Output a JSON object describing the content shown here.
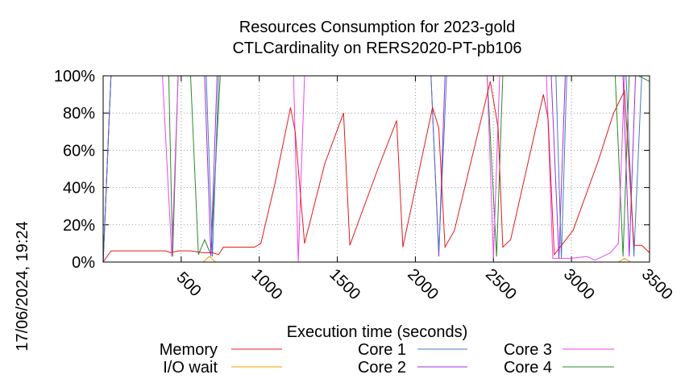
{
  "chart_data": {
    "type": "line",
    "title": "Resources Consumption for 2023-gold",
    "subtitle": "CTLCardinality on RERS2020-PT-pb106",
    "xlabel": "Execution time (seconds)",
    "ylabel": "",
    "side_label": "17/06/2024, 19:24",
    "xlim": [
      0,
      3500
    ],
    "ylim": [
      0,
      100
    ],
    "x_ticks": [
      500,
      1000,
      1500,
      2000,
      2500,
      3000,
      3500
    ],
    "x_tick_labels": [
      "500",
      "1000",
      "1500",
      "2000",
      "2500",
      "3000",
      "3500"
    ],
    "y_ticks": [
      0,
      20,
      40,
      60,
      80,
      100
    ],
    "y_tick_labels": [
      "0%",
      "20%",
      "40%",
      "60%",
      "80%",
      "100%"
    ],
    "grid": true,
    "legend_position": "bottom",
    "series": [
      {
        "name": "Memory",
        "color": "#e41a1c",
        "points": [
          [
            0,
            0
          ],
          [
            50,
            6
          ],
          [
            200,
            6
          ],
          [
            350,
            6
          ],
          [
            400,
            6
          ],
          [
            430,
            5
          ],
          [
            480,
            6
          ],
          [
            560,
            6
          ],
          [
            640,
            5
          ],
          [
            700,
            5
          ],
          [
            740,
            4
          ],
          [
            770,
            8
          ],
          [
            900,
            8
          ],
          [
            970,
            8
          ],
          [
            1010,
            10
          ],
          [
            1100,
            42
          ],
          [
            1200,
            83
          ],
          [
            1230,
            70
          ],
          [
            1290,
            10
          ],
          [
            1420,
            53
          ],
          [
            1540,
            80
          ],
          [
            1580,
            9
          ],
          [
            1760,
            50
          ],
          [
            1880,
            76
          ],
          [
            1920,
            8
          ],
          [
            2110,
            83
          ],
          [
            2150,
            72
          ],
          [
            2190,
            8
          ],
          [
            2250,
            17
          ],
          [
            2480,
            97
          ],
          [
            2530,
            72
          ],
          [
            2560,
            8
          ],
          [
            2610,
            12
          ],
          [
            2820,
            90
          ],
          [
            2850,
            77
          ],
          [
            2890,
            4
          ],
          [
            3010,
            17
          ],
          [
            3170,
            54
          ],
          [
            3270,
            80
          ],
          [
            3340,
            92
          ],
          [
            3400,
            9
          ],
          [
            3450,
            9
          ],
          [
            3500,
            5
          ]
        ]
      },
      {
        "name": "I/O wait",
        "color": "#ff9900",
        "points": [
          [
            0,
            0
          ],
          [
            500,
            0
          ],
          [
            640,
            0
          ],
          [
            680,
            3
          ],
          [
            720,
            0
          ],
          [
            1000,
            0
          ],
          [
            2000,
            0
          ],
          [
            3300,
            0
          ],
          [
            3340,
            2
          ],
          [
            3380,
            0
          ],
          [
            3500,
            0
          ]
        ]
      },
      {
        "name": "Core 1",
        "color": "#4b77be",
        "points": [
          [
            0,
            0
          ],
          [
            50,
            100
          ],
          [
            400,
            100
          ],
          [
            450,
            100
          ],
          [
            660,
            100
          ],
          [
            700,
            3
          ],
          [
            740,
            100
          ],
          [
            1000,
            100
          ],
          [
            2100,
            100
          ],
          [
            2150,
            5
          ],
          [
            2200,
            100
          ],
          [
            2900,
            100
          ],
          [
            2935,
            2
          ],
          [
            2970,
            100
          ],
          [
            3350,
            100
          ],
          [
            3400,
            3
          ],
          [
            3450,
            100
          ],
          [
            3500,
            100
          ]
        ]
      },
      {
        "name": "Core 2",
        "color": "#9b30d9",
        "points": [
          [
            0,
            0
          ],
          [
            50,
            100
          ],
          [
            400,
            100
          ],
          [
            650,
            100
          ],
          [
            690,
            3
          ],
          [
            730,
            100
          ],
          [
            1000,
            100
          ],
          [
            2100,
            100
          ],
          [
            2150,
            3
          ],
          [
            2190,
            100
          ],
          [
            2870,
            100
          ],
          [
            2920,
            2
          ],
          [
            2960,
            100
          ],
          [
            3330,
            100
          ],
          [
            3370,
            3
          ],
          [
            3410,
            100
          ],
          [
            3500,
            100
          ]
        ]
      },
      {
        "name": "Core 3",
        "color": "#ee44ee",
        "points": [
          [
            0,
            0
          ],
          [
            50,
            100
          ],
          [
            380,
            100
          ],
          [
            440,
            3
          ],
          [
            480,
            100
          ],
          [
            1220,
            100
          ],
          [
            1250,
            0
          ],
          [
            1290,
            100
          ],
          [
            2460,
            100
          ],
          [
            2500,
            2
          ],
          [
            2540,
            100
          ],
          [
            2840,
            100
          ],
          [
            2880,
            2
          ],
          [
            3000,
            2
          ],
          [
            3100,
            3
          ],
          [
            3150,
            1
          ],
          [
            3250,
            5
          ],
          [
            3300,
            10
          ],
          [
            3340,
            100
          ],
          [
            3500,
            100
          ]
        ]
      },
      {
        "name": "Core 4",
        "color": "#2a8a2a",
        "points": [
          [
            0,
            0
          ],
          [
            50,
            100
          ],
          [
            420,
            100
          ],
          [
            445,
            3
          ],
          [
            480,
            100
          ],
          [
            560,
            100
          ],
          [
            610,
            4
          ],
          [
            650,
            12
          ],
          [
            690,
            4
          ],
          [
            750,
            100
          ],
          [
            1000,
            100
          ],
          [
            2460,
            100
          ],
          [
            2520,
            3
          ],
          [
            2560,
            100
          ],
          [
            3280,
            100
          ],
          [
            3330,
            3
          ],
          [
            3370,
            100
          ],
          [
            3430,
            100
          ],
          [
            3500,
            97
          ]
        ]
      }
    ]
  }
}
